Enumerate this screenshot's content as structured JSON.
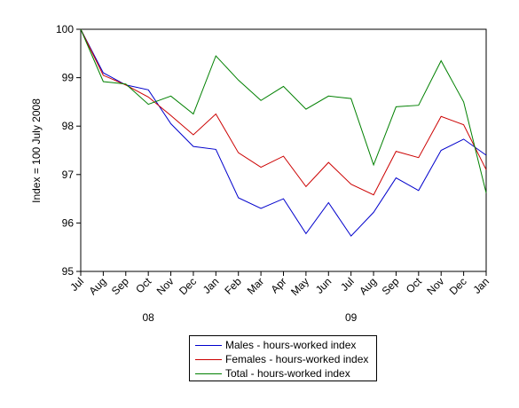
{
  "chart_data": {
    "type": "line",
    "ylabel": "Index = 100 July 2008",
    "ylim": [
      95,
      100
    ],
    "y_ticks": [
      95,
      96,
      97,
      98,
      99,
      100
    ],
    "categories": [
      "Jul",
      "Aug",
      "Sep",
      "Oct",
      "Nov",
      "Dec",
      "Jan",
      "Feb",
      "Mar",
      "Apr",
      "May",
      "Jun",
      "Jul",
      "Aug",
      "Sep",
      "Oct",
      "Nov",
      "Dec",
      "Jan"
    ],
    "year_labels": [
      {
        "label": "08",
        "category_index": 3
      },
      {
        "label": "09",
        "category_index": 12
      }
    ],
    "grid": false,
    "legend_position": "bottom",
    "series": [
      {
        "name": "Males - hours-worked index",
        "color": "#0000cc",
        "values": [
          100.0,
          99.1,
          98.85,
          98.75,
          98.05,
          97.58,
          97.52,
          96.52,
          96.3,
          96.5,
          95.78,
          96.42,
          95.73,
          96.22,
          96.93,
          96.67,
          97.5,
          97.73,
          97.4
        ]
      },
      {
        "name": "Females - hours-worked index",
        "color": "#cc0000",
        "values": [
          100.0,
          99.05,
          98.85,
          98.6,
          98.22,
          97.82,
          98.25,
          97.45,
          97.15,
          97.38,
          96.75,
          97.25,
          96.8,
          96.58,
          97.48,
          97.35,
          98.2,
          98.03,
          97.1
        ]
      },
      {
        "name": "Total - hours-worked index",
        "color": "#008000",
        "values": [
          100.0,
          98.92,
          98.87,
          98.45,
          98.62,
          98.25,
          99.45,
          98.95,
          98.53,
          98.82,
          98.35,
          98.62,
          98.57,
          97.2,
          98.4,
          98.43,
          99.35,
          98.5,
          96.62
        ]
      }
    ]
  }
}
